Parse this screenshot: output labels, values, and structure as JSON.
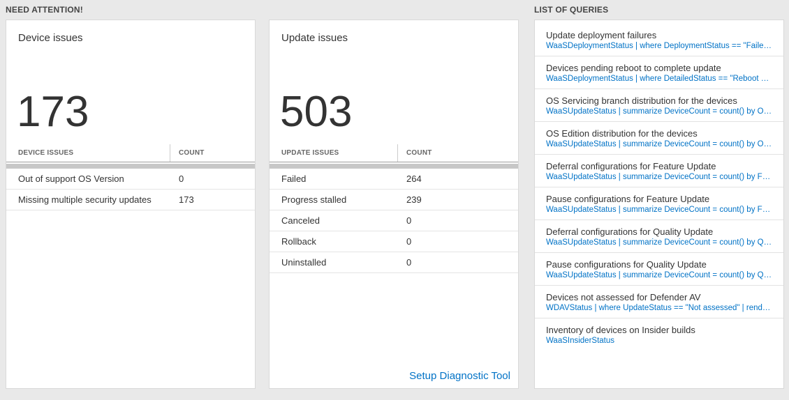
{
  "colors": {
    "accent": "#0072c6",
    "page_bg": "#e9e9e9"
  },
  "sections": {
    "need_attention": "NEED ATTENTION!",
    "list_of_queries": "LIST OF QUERIES"
  },
  "device_card": {
    "title": "Device issues",
    "count": "173",
    "headers": {
      "name": "DEVICE ISSUES",
      "count": "COUNT"
    },
    "rows": [
      {
        "label": "Out of support OS Version",
        "count": "0"
      },
      {
        "label": "Missing multiple security updates",
        "count": "173"
      }
    ]
  },
  "update_card": {
    "title": "Update issues",
    "count": "503",
    "headers": {
      "name": "UPDATE ISSUES",
      "count": "COUNT"
    },
    "rows": [
      {
        "label": "Failed",
        "count": "264"
      },
      {
        "label": "Progress stalled",
        "count": "239"
      },
      {
        "label": "Canceled",
        "count": "0"
      },
      {
        "label": "Rollback",
        "count": "0"
      },
      {
        "label": "Uninstalled",
        "count": "0"
      }
    ],
    "footer_link": "Setup Diagnostic Tool"
  },
  "queries": [
    {
      "title": "Update deployment failures",
      "query": "WaaSDeploymentStatus | where DeploymentStatus == \"Failed\" |..."
    },
    {
      "title": "Devices pending reboot to complete update",
      "query": "WaaSDeploymentStatus | where DetailedStatus == \"Reboot pend..."
    },
    {
      "title": "OS Servicing branch distribution for the devices",
      "query": "WaaSUpdateStatus | summarize DeviceCount = count() by OSSer..."
    },
    {
      "title": "OS Edition distribution for the devices",
      "query": "WaaSUpdateStatus | summarize DeviceCount = count() by OSEdit..."
    },
    {
      "title": "Deferral configurations for Feature Update",
      "query": "WaaSUpdateStatus | summarize DeviceCount = count() by Featur..."
    },
    {
      "title": "Pause configurations for Feature Update",
      "query": "WaaSUpdateStatus | summarize DeviceCount = count() by Featur..."
    },
    {
      "title": "Deferral configurations for Quality Update",
      "query": "WaaSUpdateStatus | summarize DeviceCount = count() by Qualit..."
    },
    {
      "title": "Pause configurations for Quality Update",
      "query": "WaaSUpdateStatus | summarize DeviceCount = count() by Qualit..."
    },
    {
      "title": "Devices not assessed for Defender AV",
      "query": "WDAVStatus | where UpdateStatus == \"Not assessed\" | render ta..."
    },
    {
      "title": "Inventory of devices on Insider builds",
      "query": "WaaSInsiderStatus"
    }
  ]
}
